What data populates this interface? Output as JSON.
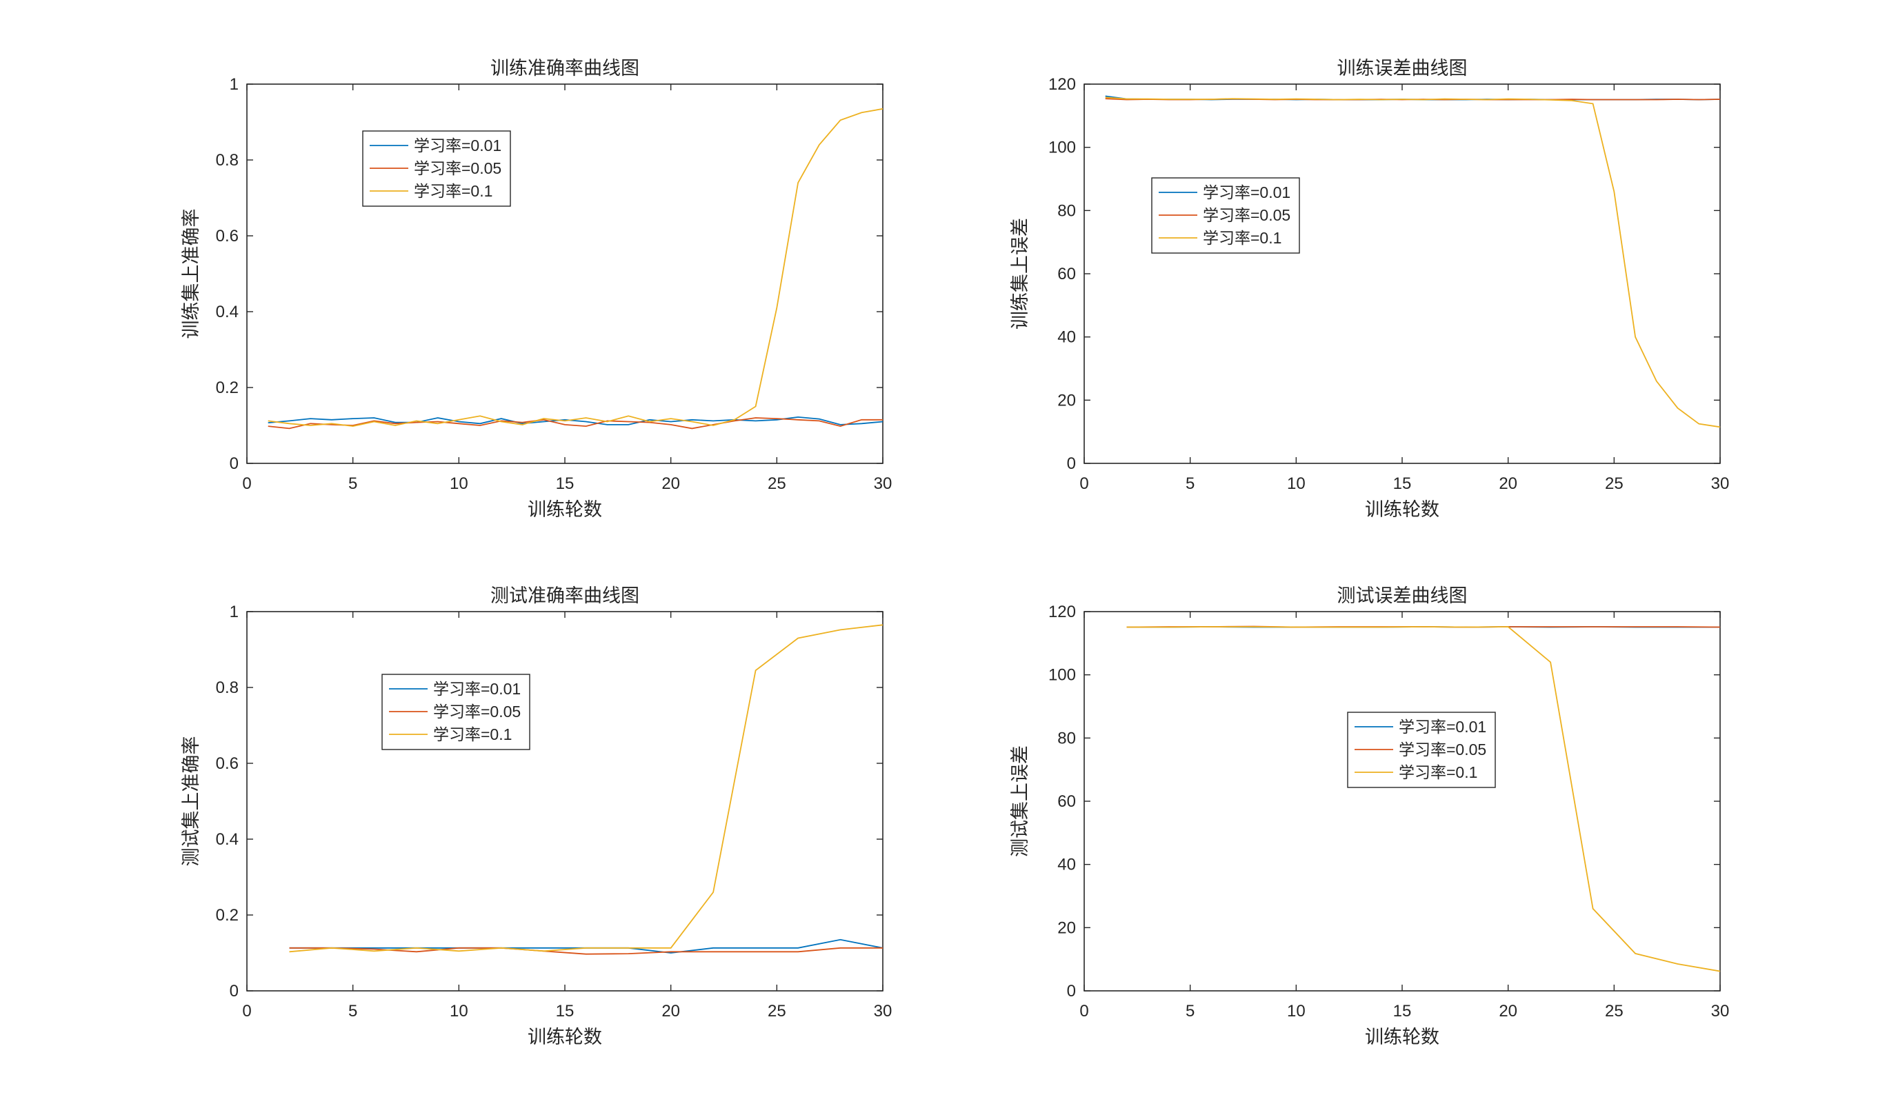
{
  "colors": {
    "lr_0.01": "#0072BD",
    "lr_0.05": "#D95319",
    "lr_0.1": "#EDB120",
    "axis": "#262626",
    "background": "#ffffff"
  },
  "chart_data": [
    {
      "type": "line",
      "title": "训练准确率曲线图",
      "xlabel": "训练轮数",
      "ylabel": "训练集上准确率",
      "xlim": [
        0,
        30
      ],
      "ylim": [
        0,
        1
      ],
      "xticks": [
        0,
        5,
        10,
        15,
        20,
        25,
        30
      ],
      "xtick_labels": [
        "0",
        "5",
        "10",
        "15",
        "20",
        "25",
        "30"
      ],
      "yticks": [
        0,
        0.2,
        0.4,
        0.6,
        0.8,
        1
      ],
      "ytick_labels": [
        "0",
        "0.2",
        "0.4",
        "0.6",
        "0.8",
        "1"
      ],
      "grid": false,
      "legend": "upper-left",
      "x": [
        1,
        2,
        3,
        4,
        5,
        6,
        7,
        8,
        9,
        10,
        11,
        12,
        13,
        14,
        15,
        16,
        17,
        18,
        19,
        20,
        21,
        22,
        23,
        24,
        25,
        26,
        27,
        28,
        29,
        30
      ],
      "series": [
        {
          "name": "学习率=0.01",
          "values": [
            0.107,
            0.112,
            0.118,
            0.115,
            0.118,
            0.12,
            0.108,
            0.108,
            0.12,
            0.11,
            0.105,
            0.118,
            0.105,
            0.11,
            0.115,
            0.11,
            0.102,
            0.102,
            0.115,
            0.11,
            0.115,
            0.112,
            0.115,
            0.112,
            0.115,
            0.122,
            0.117,
            0.102,
            0.105,
            0.11
          ]
        },
        {
          "name": "学习率=0.05",
          "values": [
            0.098,
            0.092,
            0.105,
            0.102,
            0.1,
            0.112,
            0.105,
            0.108,
            0.11,
            0.105,
            0.1,
            0.112,
            0.108,
            0.115,
            0.102,
            0.098,
            0.112,
            0.11,
            0.108,
            0.102,
            0.092,
            0.102,
            0.112,
            0.12,
            0.118,
            0.115,
            0.112,
            0.098,
            0.115,
            0.115
          ]
        },
        {
          "name": "学习率=0.1",
          "values": [
            0.112,
            0.105,
            0.1,
            0.105,
            0.098,
            0.11,
            0.1,
            0.112,
            0.105,
            0.115,
            0.125,
            0.11,
            0.102,
            0.118,
            0.112,
            0.12,
            0.11,
            0.125,
            0.11,
            0.118,
            0.11,
            0.1,
            0.115,
            0.15,
            0.41,
            0.74,
            0.84,
            0.905,
            0.925,
            0.935
          ]
        }
      ]
    },
    {
      "type": "line",
      "title": "训练误差曲线图",
      "xlabel": "训练轮数",
      "ylabel": "训练集上误差",
      "xlim": [
        0,
        30
      ],
      "ylim": [
        0,
        120
      ],
      "xticks": [
        0,
        5,
        10,
        15,
        20,
        25,
        30
      ],
      "xtick_labels": [
        "0",
        "5",
        "10",
        "15",
        "20",
        "25",
        "30"
      ],
      "yticks": [
        0,
        20,
        40,
        60,
        80,
        100,
        120
      ],
      "ytick_labels": [
        "0",
        "20",
        "40",
        "60",
        "80",
        "100",
        "120"
      ],
      "grid": false,
      "legend": "middle-left",
      "x": [
        1,
        2,
        3,
        4,
        5,
        6,
        7,
        8,
        9,
        10,
        11,
        12,
        13,
        14,
        15,
        16,
        17,
        18,
        19,
        20,
        21,
        22,
        23,
        24,
        25,
        26,
        27,
        28,
        29,
        30
      ],
      "series": [
        {
          "name": "学习率=0.01",
          "values": [
            116.2,
            115.3,
            115.2,
            115.2,
            115.2,
            115.1,
            115.2,
            115.2,
            115.2,
            115.1,
            115.2,
            115.1,
            115.1,
            115.1,
            115.2,
            115.1,
            115.1,
            115.1,
            115.2,
            115.1,
            115.2,
            115.1,
            115.1,
            115.1,
            115.1,
            115.1,
            115.2,
            115.2,
            115.1,
            115.2
          ]
        },
        {
          "name": "学习率=0.05",
          "values": [
            115.4,
            115.1,
            115.2,
            115.1,
            115.1,
            115.2,
            115.3,
            115.2,
            115.1,
            115.2,
            115.1,
            115.1,
            115.1,
            115.2,
            115.1,
            115.2,
            115.1,
            115.2,
            115.1,
            115.1,
            115.1,
            115.1,
            115.2,
            115.1,
            115.1,
            115.1,
            115.1,
            115.2,
            115.1,
            115.2
          ]
        },
        {
          "name": "学习率=0.1",
          "values": [
            115.8,
            115.3,
            115.3,
            115.2,
            115.2,
            115.2,
            115.4,
            115.3,
            115.2,
            115.3,
            115.2,
            115.1,
            115.2,
            115.1,
            115.2,
            115.1,
            115.3,
            115.2,
            115.1,
            115.3,
            115.2,
            115,
            114.8,
            113.8,
            86,
            40,
            26,
            17.5,
            12.5,
            11.5
          ]
        }
      ]
    },
    {
      "type": "line",
      "title": "测试准确率曲线图",
      "xlabel": "训练轮数",
      "ylabel": "测试集上准确率",
      "xlim": [
        0,
        30
      ],
      "ylim": [
        0,
        1
      ],
      "xticks": [
        0,
        5,
        10,
        15,
        20,
        25,
        30
      ],
      "xtick_labels": [
        "0",
        "5",
        "10",
        "15",
        "20",
        "25",
        "30"
      ],
      "yticks": [
        0,
        0.2,
        0.4,
        0.6,
        0.8,
        1
      ],
      "ytick_labels": [
        "0",
        "0.2",
        "0.4",
        "0.6",
        "0.8",
        "1"
      ],
      "grid": false,
      "legend": "upper-left",
      "x": [
        2,
        4,
        6,
        8,
        10,
        12,
        14,
        16,
        18,
        20,
        22,
        24,
        26,
        28,
        30
      ],
      "series": [
        {
          "name": "学习率=0.01",
          "values": [
            0.113,
            0.113,
            0.113,
            0.113,
            0.113,
            0.113,
            0.113,
            0.113,
            0.113,
            0.1,
            0.113,
            0.113,
            0.113,
            0.135,
            0.113
          ]
        },
        {
          "name": "学习率=0.05",
          "values": [
            0.113,
            0.113,
            0.11,
            0.103,
            0.113,
            0.113,
            0.105,
            0.097,
            0.098,
            0.103,
            0.103,
            0.103,
            0.103,
            0.113,
            0.113
          ]
        },
        {
          "name": "学习率=0.1",
          "values": [
            0.103,
            0.113,
            0.105,
            0.113,
            0.105,
            0.113,
            0.105,
            0.113,
            0.113,
            0.113,
            0.26,
            0.845,
            0.93,
            0.952,
            0.965
          ]
        }
      ]
    },
    {
      "type": "line",
      "title": "测试误差曲线图",
      "xlabel": "训练轮数",
      "ylabel": "测试集上误差",
      "xlim": [
        0,
        30
      ],
      "ylim": [
        0,
        120
      ],
      "xticks": [
        0,
        5,
        10,
        15,
        20,
        25,
        30
      ],
      "xtick_labels": [
        "0",
        "5",
        "10",
        "15",
        "20",
        "25",
        "30"
      ],
      "yticks": [
        0,
        20,
        40,
        60,
        80,
        100,
        120
      ],
      "ytick_labels": [
        "0",
        "20",
        "40",
        "60",
        "80",
        "100",
        "120"
      ],
      "grid": false,
      "legend": "center",
      "x": [
        2,
        4,
        6,
        8,
        10,
        12,
        14,
        16,
        18,
        20,
        22,
        24,
        26,
        28,
        30
      ],
      "series": [
        {
          "name": "学习率=0.01",
          "values": [
            115.1,
            115.1,
            115.2,
            115.1,
            115.1,
            115.1,
            115.1,
            115.2,
            115.1,
            115.2,
            115.1,
            115.2,
            115.1,
            115.1,
            115.1
          ]
        },
        {
          "name": "学习率=0.05",
          "values": [
            115.1,
            115.2,
            115.2,
            115.3,
            115.1,
            115.2,
            115.2,
            115.2,
            115.1,
            115.2,
            115.2,
            115.2,
            115.2,
            115.2,
            115.1
          ]
        },
        {
          "name": "学习率=0.1",
          "values": [
            115.1,
            115.1,
            115.2,
            115.2,
            115.1,
            115.1,
            115.1,
            115.2,
            115.1,
            115.2,
            104,
            26,
            11.8,
            8.5,
            6.2
          ]
        }
      ]
    }
  ]
}
